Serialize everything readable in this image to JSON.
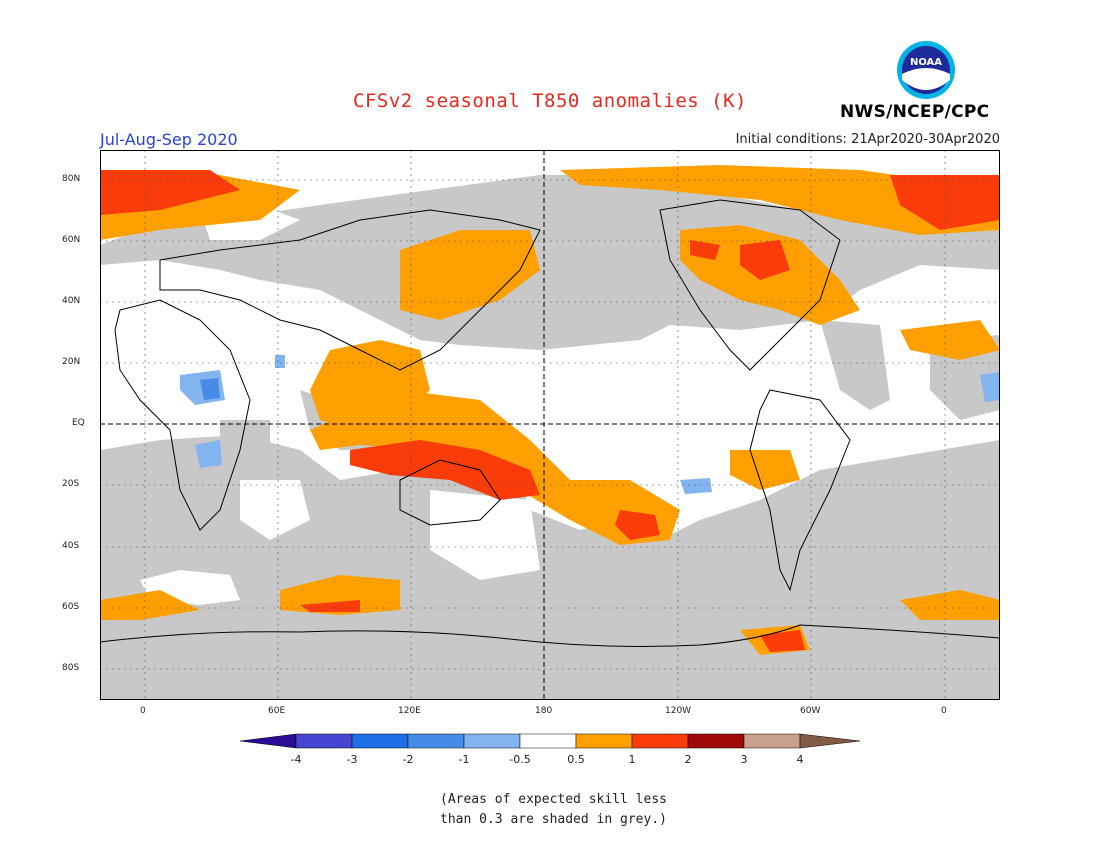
{
  "header": {
    "title": "CFSv2 seasonal T850 anomalies (K)",
    "season": "Jul-Aug-Sep 2020",
    "initial_conditions": "Initial conditions: 21Apr2020-30Apr2020",
    "agency": "NWS/NCEP/CPC",
    "logo_text": "NOAA"
  },
  "map": {
    "lat_labels": [
      "80N",
      "60N",
      "40N",
      "20N",
      "EQ",
      "20S",
      "40S",
      "60S",
      "80S"
    ],
    "lon_labels": [
      "0",
      "60E",
      "120E",
      "180",
      "120W",
      "60W",
      "0"
    ],
    "land_mask_color": "#c8c8c8",
    "ocean_color": "#ffffff"
  },
  "colorbar": {
    "labels": [
      "-4",
      "-3",
      "-2",
      "-1",
      "-0.5",
      "0.5",
      "1",
      "2",
      "3",
      "4"
    ],
    "colors": [
      "#2a0c96",
      "#4646d2",
      "#1e6ee6",
      "#468ce6",
      "#82b4f0",
      "#ffffff",
      "#ffa000",
      "#fa3c0a",
      "#a00a0a",
      "#c8a08c",
      "#825a46"
    ]
  },
  "note": {
    "line1": "(Areas of expected skill less",
    "line2": "than 0.3 are shaded in grey.)"
  }
}
